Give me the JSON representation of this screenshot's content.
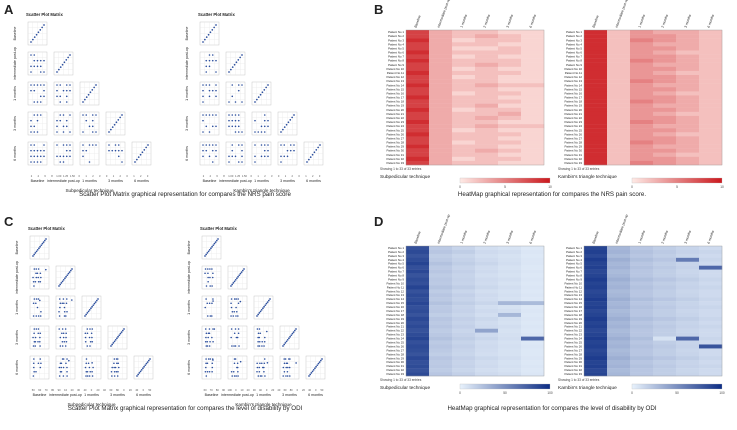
{
  "panels": {
    "A": {
      "letter": "A",
      "caption": "Scatter Plot Matrix graphical representation for compares the NRS pain score"
    },
    "B": {
      "letter": "B",
      "caption": "HeatMap graphical representation for compares the NRS pain score."
    },
    "C": {
      "letter": "C",
      "caption": "Scatter Plot Matrix graphical representation for compares the level of disability by ODI"
    },
    "D": {
      "letter": "D",
      "caption": "HeatMap graphical representation for compares the level of disability by ODI"
    }
  },
  "chart_data": [
    {
      "id": "A-left",
      "type": "scatter",
      "title": "Scatter Plot Matrix",
      "technique": "Subpedicular technique",
      "variables": [
        "Baseline",
        "intermediate post-op",
        "1 months",
        "3 months",
        "6 months"
      ],
      "tick_labels": [
        "2",
        "4",
        "6",
        "8",
        "1.00",
        "1.25",
        "1.50",
        "0",
        "1",
        "2",
        "3",
        "0",
        "1",
        "2",
        "0",
        "1",
        "2",
        "3"
      ]
    },
    {
      "id": "A-right",
      "type": "scatter",
      "title": "Scatter Plot Matrix",
      "technique": "Kambin's triangle technique",
      "variables": [
        "Baseline",
        "intermediate post-op",
        "1 months",
        "3 months",
        "6 months"
      ],
      "tick_labels": [
        "2",
        "4",
        "6",
        "8",
        "1.00",
        "1.25",
        "1.50",
        "0",
        "1",
        "2",
        "3",
        "0",
        "1",
        "2",
        "0",
        "1",
        "2",
        "3"
      ]
    },
    {
      "id": "B-left",
      "type": "heatmap",
      "technique": "Subpedicular technique",
      "columns": [
        "Baseline",
        "intermediate post-op",
        "1 months",
        "2 months",
        "3 months",
        "6 months"
      ],
      "rows_label_prefix": "Patient No ",
      "row_count": 33,
      "footer": "Showing 1 to 33 of 33 entries",
      "scale_ticks": [
        "0",
        "5",
        "10"
      ],
      "scale_min": 0,
      "scale_max": 10,
      "values": [
        [
          8,
          3,
          2,
          2,
          1,
          1
        ],
        [
          8,
          3,
          2,
          3,
          2,
          1
        ],
        [
          9,
          3,
          1,
          2,
          2,
          1
        ],
        [
          8,
          3,
          2,
          2,
          1,
          1
        ],
        [
          8,
          3,
          1,
          1,
          2,
          1
        ],
        [
          9,
          3,
          2,
          2,
          2,
          1
        ],
        [
          8,
          3,
          1,
          2,
          1,
          1
        ],
        [
          9,
          3,
          2,
          2,
          2,
          1
        ],
        [
          8,
          3,
          2,
          3,
          2,
          1
        ],
        [
          8,
          3,
          1,
          2,
          1,
          1
        ],
        [
          9,
          3,
          2,
          2,
          2,
          1
        ],
        [
          8,
          3,
          1,
          2,
          1,
          1
        ],
        [
          8,
          3,
          2,
          2,
          1,
          1
        ],
        [
          9,
          3,
          2,
          3,
          2,
          2
        ],
        [
          8,
          3,
          2,
          2,
          1,
          1
        ],
        [
          8,
          3,
          1,
          2,
          2,
          1
        ],
        [
          9,
          3,
          2,
          2,
          1,
          1
        ],
        [
          8,
          3,
          2,
          2,
          2,
          1
        ],
        [
          8,
          3,
          2,
          3,
          1,
          1
        ],
        [
          9,
          3,
          1,
          2,
          2,
          1
        ],
        [
          8,
          3,
          2,
          2,
          3,
          1
        ],
        [
          8,
          3,
          2,
          3,
          2,
          1
        ],
        [
          9,
          3,
          2,
          2,
          1,
          1
        ],
        [
          8,
          3,
          2,
          3,
          2,
          2
        ],
        [
          8,
          3,
          1,
          2,
          1,
          1
        ],
        [
          9,
          3,
          2,
          2,
          2,
          1
        ],
        [
          8,
          3,
          2,
          2,
          1,
          1
        ],
        [
          8,
          3,
          1,
          2,
          2,
          1
        ],
        [
          9,
          3,
          2,
          2,
          1,
          1
        ],
        [
          8,
          3,
          2,
          3,
          2,
          1
        ],
        [
          8,
          3,
          2,
          2,
          1,
          1
        ],
        [
          9,
          3,
          1,
          2,
          2,
          1
        ],
        [
          8,
          3,
          2,
          2,
          1,
          1
        ]
      ]
    },
    {
      "id": "B-right",
      "type": "heatmap",
      "technique": "Kambin's triangle technique",
      "columns": [
        "Baseline",
        "intermediate post-op",
        "1 months",
        "2 months",
        "3 months",
        "6 months"
      ],
      "rows_label_prefix": "Patient No ",
      "row_count": 33,
      "footer": "Showing 1 to 33 of 33 entries",
      "scale_ticks": [
        "0",
        "5",
        "10"
      ],
      "scale_min": 0,
      "scale_max": 10,
      "values": [
        [
          9,
          2,
          4,
          3,
          3,
          2
        ],
        [
          9,
          2,
          4,
          4,
          3,
          2
        ],
        [
          9,
          2,
          5,
          4,
          3,
          2
        ],
        [
          9,
          2,
          4,
          3,
          3,
          2
        ],
        [
          9,
          2,
          4,
          4,
          3,
          2
        ],
        [
          9,
          2,
          4,
          3,
          2,
          2
        ],
        [
          9,
          2,
          4,
          4,
          3,
          2
        ],
        [
          9,
          2,
          5,
          4,
          3,
          2
        ],
        [
          9,
          2,
          4,
          3,
          3,
          2
        ],
        [
          9,
          2,
          4,
          4,
          3,
          2
        ],
        [
          9,
          2,
          4,
          3,
          2,
          2
        ],
        [
          9,
          2,
          4,
          4,
          3,
          2
        ],
        [
          9,
          2,
          5,
          4,
          3,
          2
        ],
        [
          9,
          2,
          4,
          3,
          3,
          2
        ],
        [
          9,
          2,
          4,
          4,
          3,
          2
        ],
        [
          9,
          2,
          4,
          3,
          2,
          2
        ],
        [
          9,
          2,
          4,
          4,
          3,
          2
        ],
        [
          9,
          2,
          5,
          4,
          3,
          2
        ],
        [
          9,
          2,
          4,
          3,
          3,
          2
        ],
        [
          9,
          2,
          4,
          4,
          3,
          2
        ],
        [
          9,
          2,
          4,
          3,
          2,
          2
        ],
        [
          9,
          2,
          4,
          4,
          3,
          2
        ],
        [
          9,
          2,
          5,
          4,
          3,
          2
        ],
        [
          9,
          2,
          4,
          3,
          3,
          2
        ],
        [
          9,
          2,
          4,
          4,
          3,
          2
        ],
        [
          9,
          2,
          4,
          3,
          2,
          2
        ],
        [
          9,
          2,
          4,
          4,
          3,
          2
        ],
        [
          9,
          2,
          5,
          4,
          3,
          2
        ],
        [
          9,
          2,
          4,
          3,
          3,
          2
        ],
        [
          9,
          2,
          4,
          4,
          3,
          2
        ],
        [
          9,
          2,
          4,
          3,
          2,
          2
        ],
        [
          9,
          2,
          4,
          4,
          3,
          2
        ],
        [
          9,
          2,
          5,
          4,
          3,
          2
        ]
      ]
    },
    {
      "id": "C-left",
      "type": "scatter",
      "title": "Scatter Plot Matrix",
      "technique": "Subpedicular technique",
      "variables": [
        "Baseline",
        "intermediate post-op",
        "1 months",
        "3 months",
        "6 months"
      ],
      "tick_labels": [
        "50",
        "60",
        "70",
        "80",
        "90",
        "10",
        "20",
        "30",
        "40",
        "0",
        "20",
        "40",
        "60",
        "80",
        "0",
        "20",
        "40",
        "0",
        "50"
      ]
    },
    {
      "id": "C-right",
      "type": "scatter",
      "title": "Scatter Plot Matrix",
      "technique": "Kambin's triangle technique",
      "variables": [
        "Baseline",
        "intermediate post-op",
        "1 months",
        "3 months",
        "6 months"
      ],
      "tick_labels": [
        "60",
        "70",
        "80",
        "90",
        "100",
        "0",
        "10",
        "20",
        "30",
        "40",
        "0",
        "20",
        "40",
        "60",
        "80",
        "0",
        "20",
        "40",
        "0",
        "50"
      ]
    },
    {
      "id": "D-left",
      "type": "heatmap",
      "technique": "Subpedicular technique",
      "columns": [
        "Baseline",
        "intermediate post-op",
        "1 months",
        "2 months",
        "3 months",
        "6 months"
      ],
      "rows_label_prefix": "Patient No ",
      "row_count": 33,
      "footer": "Showing 1 to 33 of 33 entries",
      "scale_ticks": [
        "0",
        "50",
        "100"
      ],
      "scale_min": 0,
      "scale_max": 100,
      "values": [
        [
          82,
          20,
          15,
          10,
          8,
          5
        ],
        [
          85,
          22,
          18,
          12,
          10,
          6
        ],
        [
          80,
          18,
          14,
          10,
          8,
          5
        ],
        [
          84,
          20,
          16,
          12,
          9,
          6
        ],
        [
          88,
          24,
          18,
          14,
          10,
          6
        ],
        [
          82,
          20,
          15,
          11,
          8,
          5
        ],
        [
          86,
          22,
          17,
          12,
          9,
          6
        ],
        [
          80,
          19,
          15,
          10,
          8,
          5
        ],
        [
          84,
          21,
          16,
          12,
          10,
          6
        ],
        [
          82,
          20,
          15,
          11,
          8,
          5
        ],
        [
          88,
          23,
          18,
          13,
          10,
          6
        ],
        [
          81,
          19,
          14,
          10,
          8,
          5
        ],
        [
          85,
          22,
          17,
          12,
          9,
          6
        ],
        [
          83,
          20,
          15,
          11,
          8,
          5
        ],
        [
          87,
          24,
          18,
          14,
          30,
          28
        ],
        [
          82,
          20,
          15,
          10,
          8,
          5
        ],
        [
          84,
          21,
          16,
          12,
          10,
          6
        ],
        [
          80,
          18,
          14,
          10,
          30,
          5
        ],
        [
          86,
          22,
          17,
          13,
          9,
          6
        ],
        [
          82,
          20,
          15,
          11,
          8,
          5
        ],
        [
          85,
          22,
          17,
          12,
          10,
          6
        ],
        [
          81,
          19,
          14,
          40,
          8,
          5
        ],
        [
          84,
          21,
          16,
          12,
          9,
          6
        ],
        [
          88,
          24,
          18,
          14,
          10,
          70
        ],
        [
          82,
          20,
          15,
          11,
          8,
          5
        ],
        [
          85,
          22,
          17,
          12,
          9,
          6
        ],
        [
          83,
          20,
          15,
          11,
          8,
          5
        ],
        [
          80,
          18,
          14,
          10,
          8,
          5
        ],
        [
          86,
          22,
          17,
          13,
          10,
          6
        ],
        [
          82,
          20,
          15,
          11,
          8,
          5
        ],
        [
          84,
          21,
          16,
          12,
          9,
          6
        ],
        [
          81,
          19,
          14,
          10,
          8,
          5
        ],
        [
          85,
          22,
          17,
          12,
          10,
          6
        ]
      ]
    },
    {
      "id": "D-right",
      "type": "heatmap",
      "technique": "Kambin's triangle technique",
      "columns": [
        "Baseline",
        "intermediate post-op",
        "1 months",
        "2 months",
        "3 months",
        "6 months"
      ],
      "rows_label_prefix": "Patient No ",
      "row_count": 33,
      "footer": "Showing 1 to 33 of 33 entries",
      "scale_ticks": [
        "0",
        "50",
        "100"
      ],
      "scale_min": 0,
      "scale_max": 100,
      "values": [
        [
          88,
          30,
          22,
          18,
          15,
          12
        ],
        [
          90,
          32,
          24,
          20,
          16,
          14
        ],
        [
          86,
          28,
          22,
          18,
          14,
          12
        ],
        [
          92,
          34,
          26,
          22,
          60,
          14
        ],
        [
          88,
          30,
          22,
          18,
          15,
          12
        ],
        [
          90,
          32,
          24,
          20,
          16,
          70
        ],
        [
          86,
          28,
          22,
          18,
          14,
          12
        ],
        [
          88,
          30,
          22,
          18,
          15,
          12
        ],
        [
          92,
          34,
          26,
          22,
          18,
          14
        ],
        [
          88,
          30,
          22,
          18,
          15,
          12
        ],
        [
          90,
          32,
          24,
          20,
          16,
          14
        ],
        [
          86,
          28,
          22,
          18,
          14,
          12
        ],
        [
          88,
          30,
          22,
          18,
          15,
          12
        ],
        [
          92,
          34,
          26,
          22,
          18,
          14
        ],
        [
          88,
          30,
          22,
          18,
          15,
          12
        ],
        [
          90,
          32,
          24,
          20,
          16,
          14
        ],
        [
          86,
          28,
          22,
          18,
          14,
          12
        ],
        [
          88,
          30,
          22,
          18,
          15,
          12
        ],
        [
          92,
          34,
          26,
          22,
          18,
          14
        ],
        [
          88,
          30,
          22,
          18,
          15,
          12
        ],
        [
          90,
          32,
          24,
          20,
          16,
          14
        ],
        [
          86,
          28,
          22,
          18,
          14,
          12
        ],
        [
          88,
          30,
          22,
          18,
          15,
          12
        ],
        [
          92,
          34,
          26,
          8,
          70,
          14
        ],
        [
          88,
          30,
          22,
          18,
          15,
          12
        ],
        [
          90,
          32,
          24,
          20,
          16,
          80
        ],
        [
          86,
          28,
          22,
          18,
          14,
          12
        ],
        [
          88,
          30,
          22,
          18,
          15,
          12
        ],
        [
          92,
          34,
          26,
          22,
          18,
          14
        ],
        [
          88,
          30,
          22,
          18,
          15,
          12
        ],
        [
          90,
          32,
          24,
          20,
          16,
          14
        ],
        [
          86,
          28,
          22,
          18,
          14,
          12
        ],
        [
          88,
          30,
          22,
          18,
          15,
          12
        ]
      ]
    }
  ]
}
